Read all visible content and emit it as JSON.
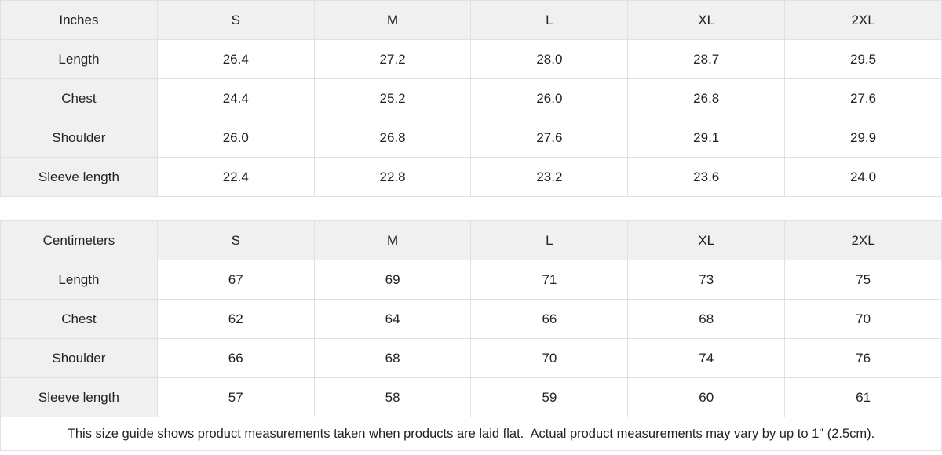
{
  "tables": [
    {
      "name": "inches",
      "unit_label": "Inches",
      "header": [
        "Inches",
        "S",
        "M",
        "L",
        "XL",
        "2XL"
      ],
      "rows": [
        {
          "label": "Length",
          "values": [
            "26.4",
            "27.2",
            "28.0",
            "28.7",
            "29.5"
          ]
        },
        {
          "label": "Chest",
          "values": [
            "24.4",
            "25.2",
            "26.0",
            "26.8",
            "27.6"
          ]
        },
        {
          "label": "Shoulder",
          "values": [
            "26.0",
            "26.8",
            "27.6",
            "29.1",
            "29.9"
          ]
        },
        {
          "label": "Sleeve length",
          "values": [
            "22.4",
            "22.8",
            "23.2",
            "23.6",
            "24.0"
          ]
        }
      ]
    },
    {
      "name": "centimeters",
      "unit_label": "Centimeters",
      "header": [
        "Centimeters",
        "S",
        "M",
        "L",
        "XL",
        "2XL"
      ],
      "rows": [
        {
          "label": "Length",
          "values": [
            "67",
            "69",
            "71",
            "73",
            "75"
          ]
        },
        {
          "label": "Chest",
          "values": [
            "62",
            "64",
            "66",
            "68",
            "70"
          ]
        },
        {
          "label": "Shoulder",
          "values": [
            "66",
            "68",
            "70",
            "74",
            "76"
          ]
        },
        {
          "label": "Sleeve length",
          "values": [
            "57",
            "58",
            "59",
            "60",
            "61"
          ]
        }
      ]
    }
  ],
  "footer": {
    "note": "This size guide shows product measurements taken when products are laid flat.  Actual product measurements may vary by up to 1\" (2.5cm)."
  },
  "colors": {
    "header_bg": "#f0f0f0",
    "border": "#e0e0e0",
    "text": "#222222",
    "body_bg": "#ffffff"
  }
}
